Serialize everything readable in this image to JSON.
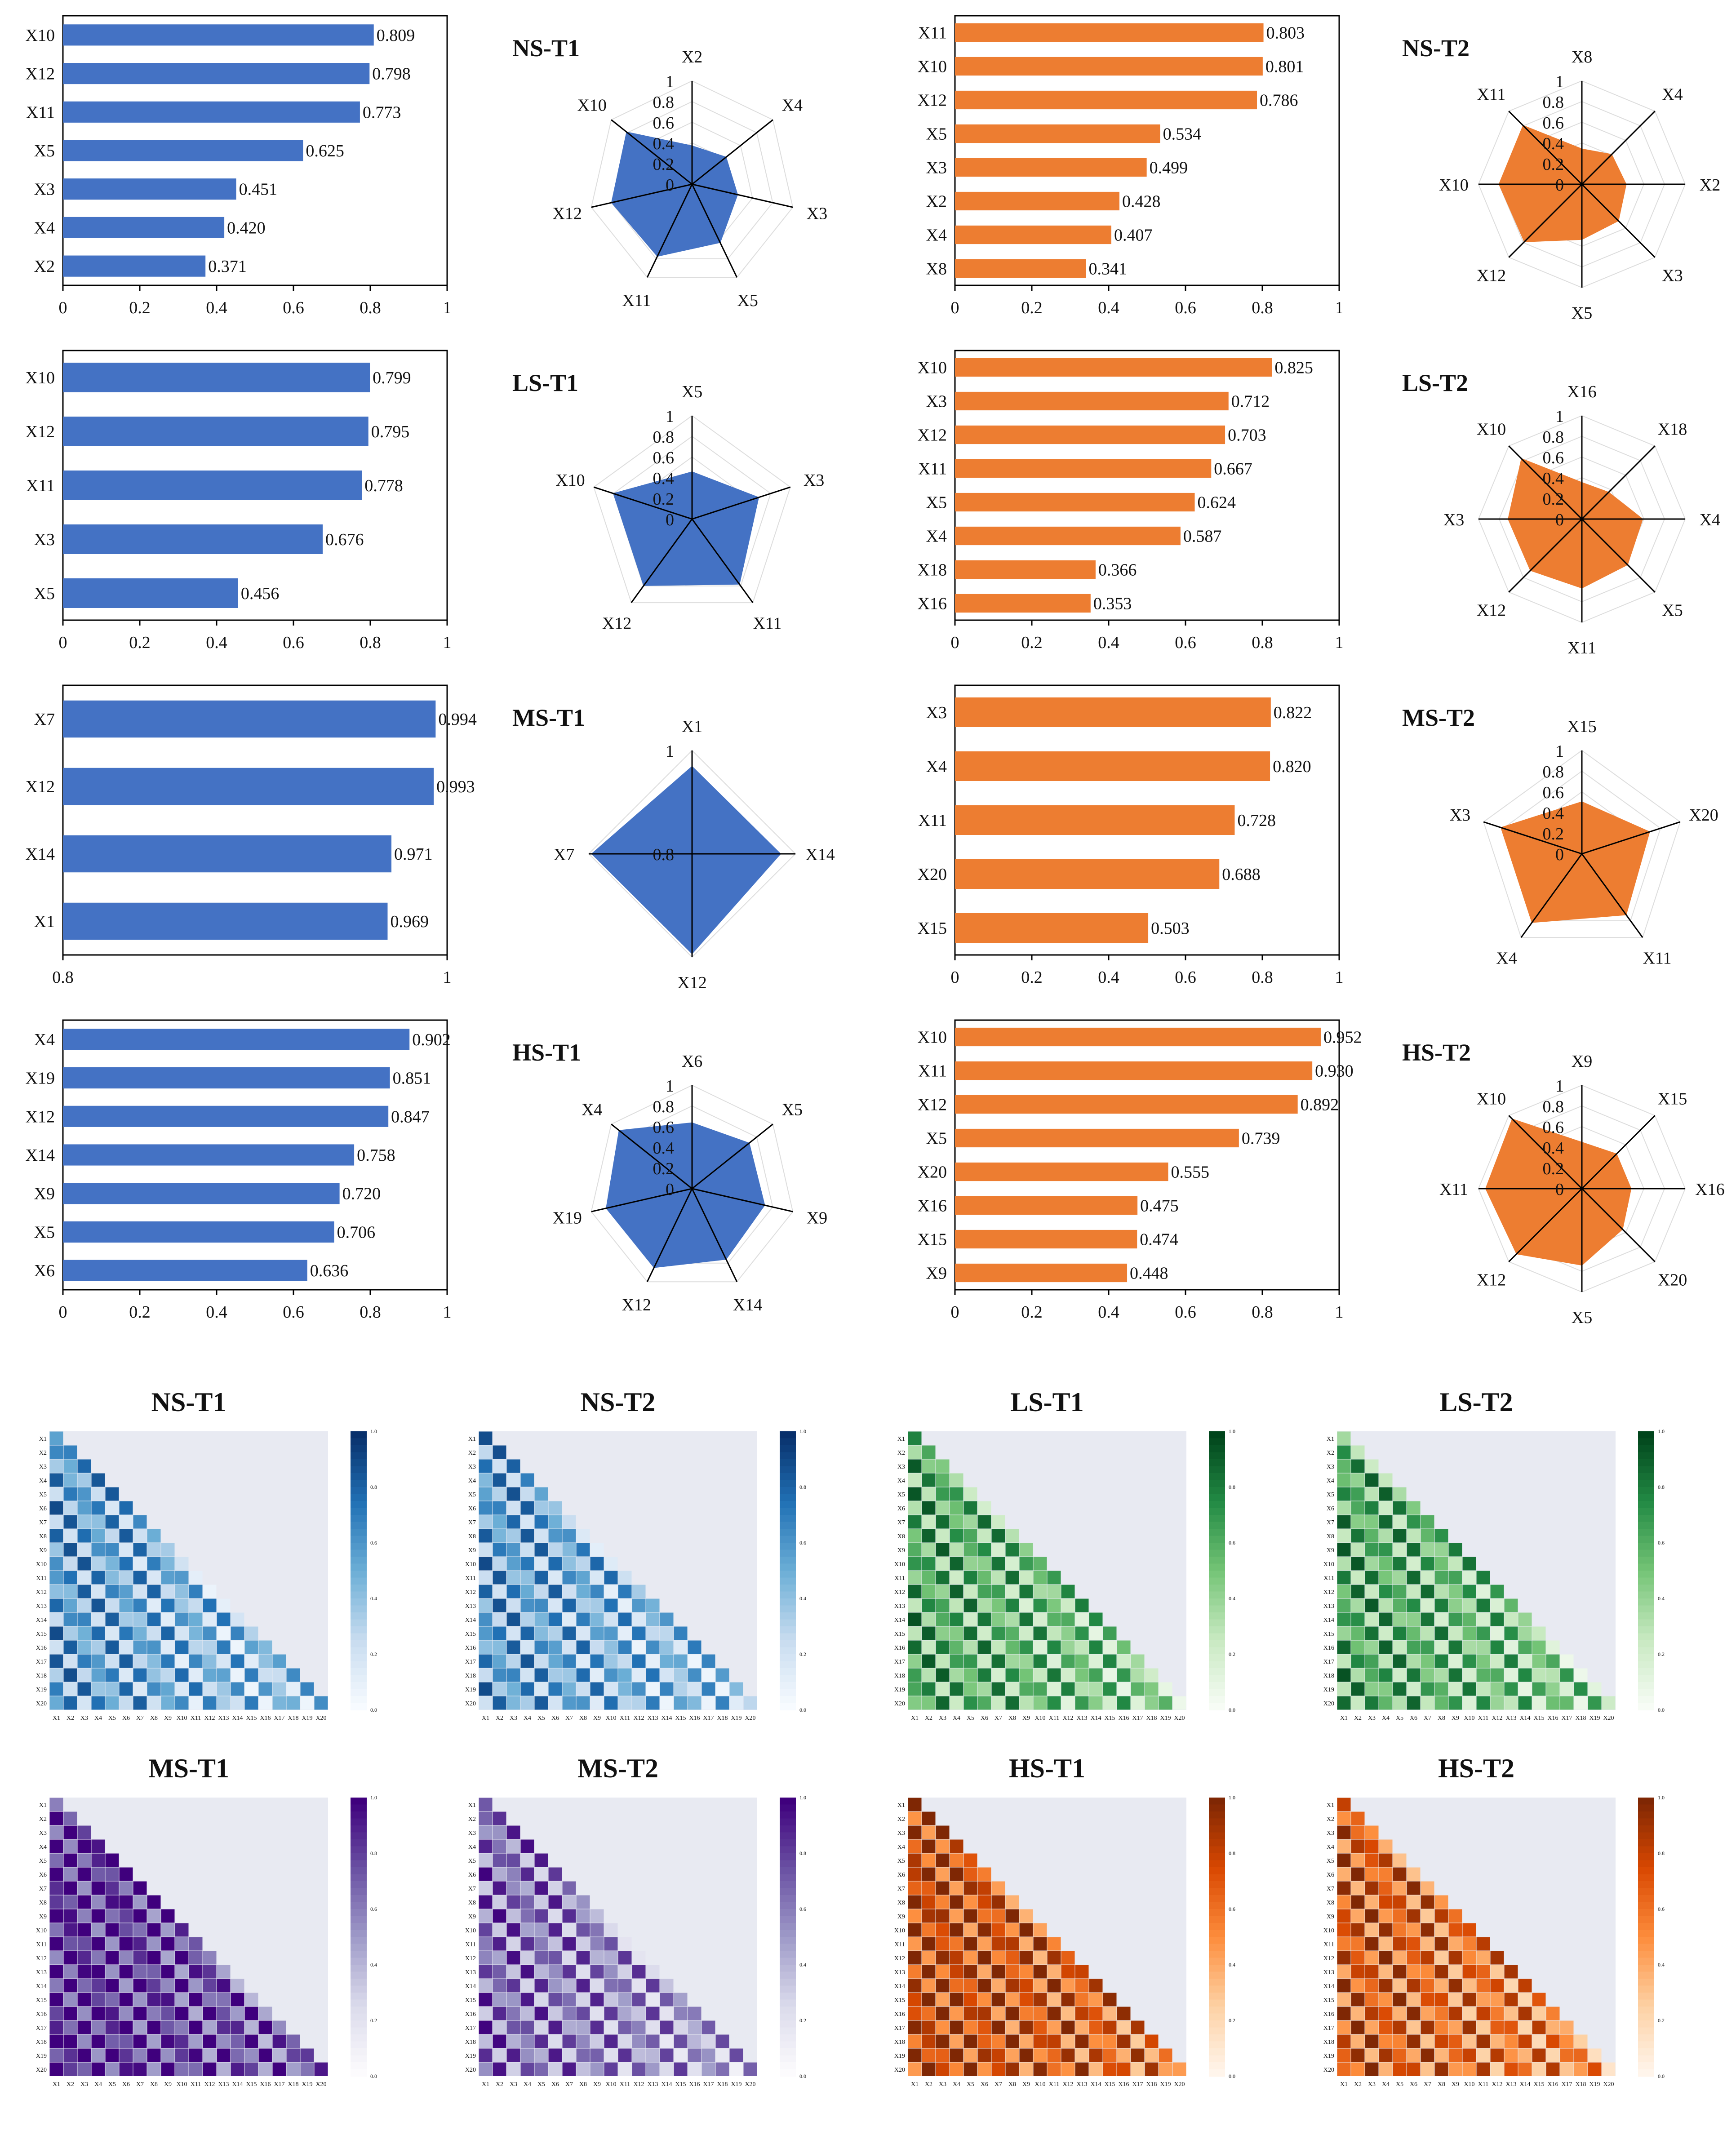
{
  "colors": {
    "blue": "#4472C4",
    "orange": "#ED7D31",
    "axis": "#000000",
    "grid_radar": "#dddddd",
    "heat_bg": "#e8eaf2",
    "scales": {
      "blue": [
        "#f7fbff",
        "#c6dbef",
        "#6baed6",
        "#2171b5",
        "#08306b"
      ],
      "green": [
        "#f7fcf5",
        "#c7e9c0",
        "#74c476",
        "#238b45",
        "#00441b"
      ],
      "purple": [
        "#fcfbfd",
        "#dadaeb",
        "#9e9ac8",
        "#6a51a3",
        "#3f007d"
      ],
      "orange": [
        "#fff5eb",
        "#fdd0a2",
        "#fd8d3c",
        "#d94801",
        "#7f2704"
      ]
    }
  },
  "chart_data": [
    {
      "type": "bar",
      "group": "NS-T1",
      "color": "blue",
      "categories": [
        "X10",
        "X12",
        "X11",
        "X5",
        "X3",
        "X4",
        "X2"
      ],
      "values": [
        0.809,
        0.798,
        0.773,
        0.625,
        0.451,
        0.42,
        0.371
      ],
      "labels": [
        "0.809",
        "0.798",
        "0.773",
        "0.625",
        "0.451",
        "0.420",
        "0.371"
      ],
      "xlim": [
        0,
        1
      ],
      "ticks": [
        "0",
        "0.2",
        "0.4",
        "0.6",
        "0.8",
        "1"
      ]
    },
    {
      "type": "radar",
      "title": "NS-T1",
      "color": "blue",
      "axes": [
        "X2",
        "X4",
        "X3",
        "X5",
        "X11",
        "X12",
        "X10"
      ],
      "values": [
        0.371,
        0.42,
        0.451,
        0.625,
        0.773,
        0.798,
        0.809
      ],
      "rmin": 0,
      "rmax": 1,
      "rticks": [
        "1",
        "0.8",
        "0.6",
        "0.4",
        "0.2",
        "0"
      ]
    },
    {
      "type": "bar",
      "group": "NS-T2",
      "color": "orange",
      "categories": [
        "X11",
        "X10",
        "X12",
        "X5",
        "X3",
        "X2",
        "X4",
        "X8"
      ],
      "values": [
        0.803,
        0.801,
        0.786,
        0.534,
        0.499,
        0.428,
        0.407,
        0.341
      ],
      "labels": [
        "0.803",
        "0.801",
        "0.786",
        "0.534",
        "0.499",
        "0.428",
        "0.407",
        "0.341"
      ],
      "xlim": [
        0,
        1
      ],
      "ticks": [
        "0",
        "0.2",
        "0.4",
        "0.6",
        "0.8",
        "1"
      ]
    },
    {
      "type": "radar",
      "title": "NS-T2",
      "color": "orange",
      "axes": [
        "X8",
        "X4",
        "X2",
        "X3",
        "X5",
        "X12",
        "X10",
        "X11"
      ],
      "values": [
        0.341,
        0.407,
        0.428,
        0.499,
        0.534,
        0.786,
        0.801,
        0.803
      ],
      "rmin": 0,
      "rmax": 1,
      "rticks": [
        "1",
        "0.8",
        "0.6",
        "0.4",
        "0.2",
        "0"
      ]
    },
    {
      "type": "bar",
      "group": "LS-T1",
      "color": "blue",
      "categories": [
        "X10",
        "X12",
        "X11",
        "X3",
        "X5"
      ],
      "values": [
        0.799,
        0.795,
        0.778,
        0.676,
        0.456
      ],
      "labels": [
        "0.799",
        "0.795",
        "0.778",
        "0.676",
        "0.456"
      ],
      "xlim": [
        0,
        1
      ],
      "ticks": [
        "0",
        "0.2",
        "0.4",
        "0.6",
        "0.8",
        "1"
      ]
    },
    {
      "type": "radar",
      "title": "LS-T1",
      "color": "blue",
      "axes": [
        "X5",
        "X3",
        "X11",
        "X12",
        "X10"
      ],
      "values": [
        0.456,
        0.676,
        0.778,
        0.795,
        0.799
      ],
      "rmin": 0,
      "rmax": 1,
      "rticks": [
        "1",
        "0.8",
        "0.6",
        "0.4",
        "0.2",
        "0"
      ]
    },
    {
      "type": "bar",
      "group": "LS-T2",
      "color": "orange",
      "categories": [
        "X10",
        "X3",
        "X12",
        "X11",
        "X5",
        "X4",
        "X18",
        "X16"
      ],
      "values": [
        0.825,
        0.712,
        0.703,
        0.667,
        0.624,
        0.587,
        0.366,
        0.353
      ],
      "labels": [
        "0.825",
        "0.712",
        "0.703",
        "0.667",
        "0.624",
        "0.587",
        "0.366",
        "0.353"
      ],
      "xlim": [
        0,
        1
      ],
      "ticks": [
        "0",
        "0.2",
        "0.4",
        "0.6",
        "0.8",
        "1"
      ]
    },
    {
      "type": "radar",
      "title": "LS-T2",
      "color": "orange",
      "axes": [
        "X16",
        "X18",
        "X4",
        "X5",
        "X11",
        "X12",
        "X3",
        "X10"
      ],
      "values": [
        0.353,
        0.366,
        0.587,
        0.624,
        0.667,
        0.703,
        0.712,
        0.825
      ],
      "rmin": 0,
      "rmax": 1,
      "rticks": [
        "1",
        "0.8",
        "0.6",
        "0.4",
        "0.2",
        "0"
      ]
    },
    {
      "type": "bar",
      "group": "MS-T1",
      "color": "blue",
      "categories": [
        "X7",
        "X12",
        "X14",
        "X1"
      ],
      "values": [
        0.994,
        0.993,
        0.971,
        0.969
      ],
      "labels": [
        "0.994",
        "0.993",
        "0.971",
        "0.969"
      ],
      "xlim": [
        0.8,
        1
      ],
      "ticks": [
        "0.8",
        "1"
      ]
    },
    {
      "type": "radar",
      "title": "MS-T1",
      "color": "blue",
      "axes": [
        "X1",
        "X14",
        "X12",
        "X7"
      ],
      "values": [
        0.969,
        0.971,
        0.993,
        0.994
      ],
      "rmin": 0.8,
      "rmax": 1,
      "rticks": [
        "1",
        "0.8"
      ]
    },
    {
      "type": "bar",
      "group": "MS-T2",
      "color": "orange",
      "categories": [
        "X3",
        "X4",
        "X11",
        "X20",
        "X15"
      ],
      "values": [
        0.822,
        0.82,
        0.728,
        0.688,
        0.503
      ],
      "labels": [
        "0.822",
        "0.820",
        "0.728",
        "0.688",
        "0.503"
      ],
      "xlim": [
        0,
        1
      ],
      "ticks": [
        "0",
        "0.2",
        "0.4",
        "0.6",
        "0.8",
        "1"
      ]
    },
    {
      "type": "radar",
      "title": "MS-T2",
      "color": "orange",
      "axes": [
        "X15",
        "X20",
        "X11",
        "X4",
        "X3"
      ],
      "values": [
        0.503,
        0.688,
        0.728,
        0.82,
        0.822
      ],
      "rmin": 0,
      "rmax": 1,
      "rticks": [
        "1",
        "0.8",
        "0.6",
        "0.4",
        "0.2",
        "0"
      ]
    },
    {
      "type": "bar",
      "group": "HS-T1",
      "color": "blue",
      "categories": [
        "X4",
        "X19",
        "X12",
        "X14",
        "X9",
        "X5",
        "X6"
      ],
      "values": [
        0.902,
        0.851,
        0.847,
        0.758,
        0.72,
        0.706,
        0.636
      ],
      "labels": [
        "0.902",
        "0.851",
        "0.847",
        "0.758",
        "0.720",
        "0.706",
        "0.636"
      ],
      "xlim": [
        0,
        1
      ],
      "ticks": [
        "0",
        "0.2",
        "0.4",
        "0.6",
        "0.8",
        "1"
      ]
    },
    {
      "type": "radar",
      "title": "HS-T1",
      "color": "blue",
      "axes": [
        "X6",
        "X5",
        "X9",
        "X14",
        "X12",
        "X19",
        "X4"
      ],
      "values": [
        0.636,
        0.706,
        0.72,
        0.758,
        0.847,
        0.851,
        0.902
      ],
      "rmin": 0,
      "rmax": 1,
      "rticks": [
        "1",
        "0.8",
        "0.6",
        "0.4",
        "0.2",
        "0"
      ]
    },
    {
      "type": "bar",
      "group": "HS-T2",
      "color": "orange",
      "categories": [
        "X10",
        "X11",
        "X12",
        "X5",
        "X20",
        "X16",
        "X15",
        "X9"
      ],
      "values": [
        0.952,
        0.93,
        0.892,
        0.739,
        0.555,
        0.475,
        0.474,
        0.448
      ],
      "labels": [
        "0.952",
        "0.930",
        "0.892",
        "0.739",
        "0.555",
        "0.475",
        "0.474",
        "0.448"
      ],
      "xlim": [
        0,
        1
      ],
      "ticks": [
        "0",
        "0.2",
        "0.4",
        "0.6",
        "0.8",
        "1"
      ]
    },
    {
      "type": "radar",
      "title": "HS-T2",
      "color": "orange",
      "axes": [
        "X9",
        "X15",
        "X16",
        "X20",
        "X5",
        "X12",
        "X11",
        "X10"
      ],
      "values": [
        0.448,
        0.474,
        0.475,
        0.555,
        0.739,
        0.892,
        0.93,
        0.952
      ],
      "rmin": 0,
      "rmax": 1,
      "rticks": [
        "1",
        "0.8",
        "0.6",
        "0.4",
        "0.2",
        "0"
      ]
    }
  ],
  "heatmaps": [
    {
      "type": "heatmap",
      "title": "NS-T1",
      "scale": "blue",
      "level": 0.55
    },
    {
      "type": "heatmap",
      "title": "NS-T2",
      "scale": "blue",
      "level": 0.55
    },
    {
      "type": "heatmap",
      "title": "LS-T1",
      "scale": "green",
      "level": 0.6
    },
    {
      "type": "heatmap",
      "title": "LS-T2",
      "scale": "green",
      "level": 0.6
    },
    {
      "type": "heatmap",
      "title": "MS-T1",
      "scale": "purple",
      "level": 0.9
    },
    {
      "type": "heatmap",
      "title": "MS-T2",
      "scale": "purple",
      "level": 0.65
    },
    {
      "type": "heatmap",
      "title": "HS-T1",
      "scale": "orange",
      "level": 0.8
    },
    {
      "type": "heatmap",
      "title": "HS-T2",
      "scale": "orange",
      "level": 0.7
    }
  ],
  "heatmap_labels": [
    "X1",
    "X2",
    "X3",
    "X4",
    "X5",
    "X6",
    "X7",
    "X8",
    "X9",
    "X10",
    "X11",
    "X12",
    "X13",
    "X14",
    "X15",
    "X16",
    "X17",
    "X18",
    "X19",
    "X20"
  ],
  "colorbar_ticks": [
    "0.0",
    "0.2",
    "0.4",
    "0.6",
    "0.8",
    "1.0"
  ]
}
